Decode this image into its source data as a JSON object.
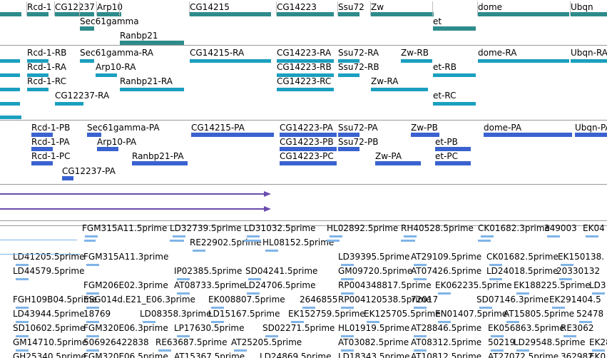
{
  "colors": {
    "gene": "#2e8b8b",
    "rna": "#1a9fbf",
    "protein": "#3a62d0",
    "purple": "#6a4cae",
    "est": "#7fb4e8",
    "separator": "#9a9a9a"
  },
  "gene_track": {
    "labels": [
      "Rcd-1",
      "CG12237",
      "Arp10",
      "Sec61gamma",
      "Ranbp21",
      "CG14215",
      "CG14223",
      "Ssu72",
      "Zw",
      "et",
      "dome",
      "Ubqn"
    ]
  },
  "rna_track": {
    "labels": [
      "Rcd-1-RB",
      "Sec61gamma-RA",
      "CG14215-RA",
      "CG14223-RA",
      "Ssu72-RA",
      "Zw-RB",
      "dome-RA",
      "Ubqn-RA",
      "Rcd-1-RA",
      "Arp10-RA",
      "CG14223-RB",
      "Ssu72-RB",
      "et-RB",
      "Rcd-1-RC",
      "Ranbp21-RA",
      "CG14223-RC",
      "Zw-RA",
      "CG12237-RA",
      "et-RC"
    ]
  },
  "protein_track": {
    "labels": [
      "Rcd-1-PB",
      "Sec61gamma-PA",
      "CG14215-PA",
      "CG14223-PA",
      "Ssu72-PA",
      "Zw-PB",
      "dome-PA",
      "Ubqn-PA",
      "Rcd-1-PA",
      "Arp10-PA",
      "CG14223-PB",
      "Ssu72-PB",
      "et-PB",
      "Rcd-1-PC",
      "Ranbp21-PA",
      "CG14223-PC",
      "Zw-PA",
      "et-PC",
      "CG12237-PA"
    ]
  },
  "est_track": {
    "labels": [
      "FGM315A11.5prime",
      "LD32739.5prime",
      "LD31032.5prime",
      "HL02892.5prime",
      "RH40528.5prime",
      "CK01682.3prime",
      "349003",
      "EK04",
      "RE22902.5prime",
      "HL08152.5prime",
      "LD41205.5prime",
      "FGM315A11.3prime",
      "LD39395.5prime",
      "AT29109.5prime",
      "CK01682.5prime",
      "EK150138.",
      "LD44579.5prime",
      "IP02385.5prime",
      "SD04241.5prime",
      "GM09720.5prime",
      "AT07426.5prime",
      "LD24018.5prime",
      "20330132",
      "FGM206E02.3prime",
      "AT08733.5prime",
      "LD24706.5prime",
      "RP004348817.5prime",
      "EK062235.5prime",
      "EK188225.5prime",
      "LD3",
      "FGH109B04.5prime",
      "ESG014d.E21_E06.3prime",
      "EK008807.5prime",
      "2646855",
      "RP004120538.5prime",
      "72017",
      "SD07146.3prime",
      "EK291404.5",
      "LD43944.5prime",
      "18769",
      "LD08358.3prime",
      "LD15167.5prime",
      "EK152759.5prime",
      "EK125705.5prime",
      "EN01407.5prime",
      "AT15805.5prime",
      "52478",
      "SD10602.5prime",
      "FGM320E06.3prime",
      "LP17630.5prime",
      "SD02271.5prime",
      "HL01919.5prime",
      "AT28846.5prime",
      "EK056863.5prime",
      "RE3062",
      "GM14710.5prime",
      "506926422838",
      "RE63687.5prime",
      "AT25205.5prime",
      "AT03082.5prime",
      "AT08312.5prime",
      "50219",
      "LD29548.5prime",
      "EK28",
      "GH25340.5prime",
      "FGM320E06.5prime",
      "AT15367.5prime",
      "LD24869.5prime",
      "LD18343.5prime",
      "AT10812.5prime",
      "AT27072.5prime",
      "362982",
      "EK0"
    ]
  }
}
